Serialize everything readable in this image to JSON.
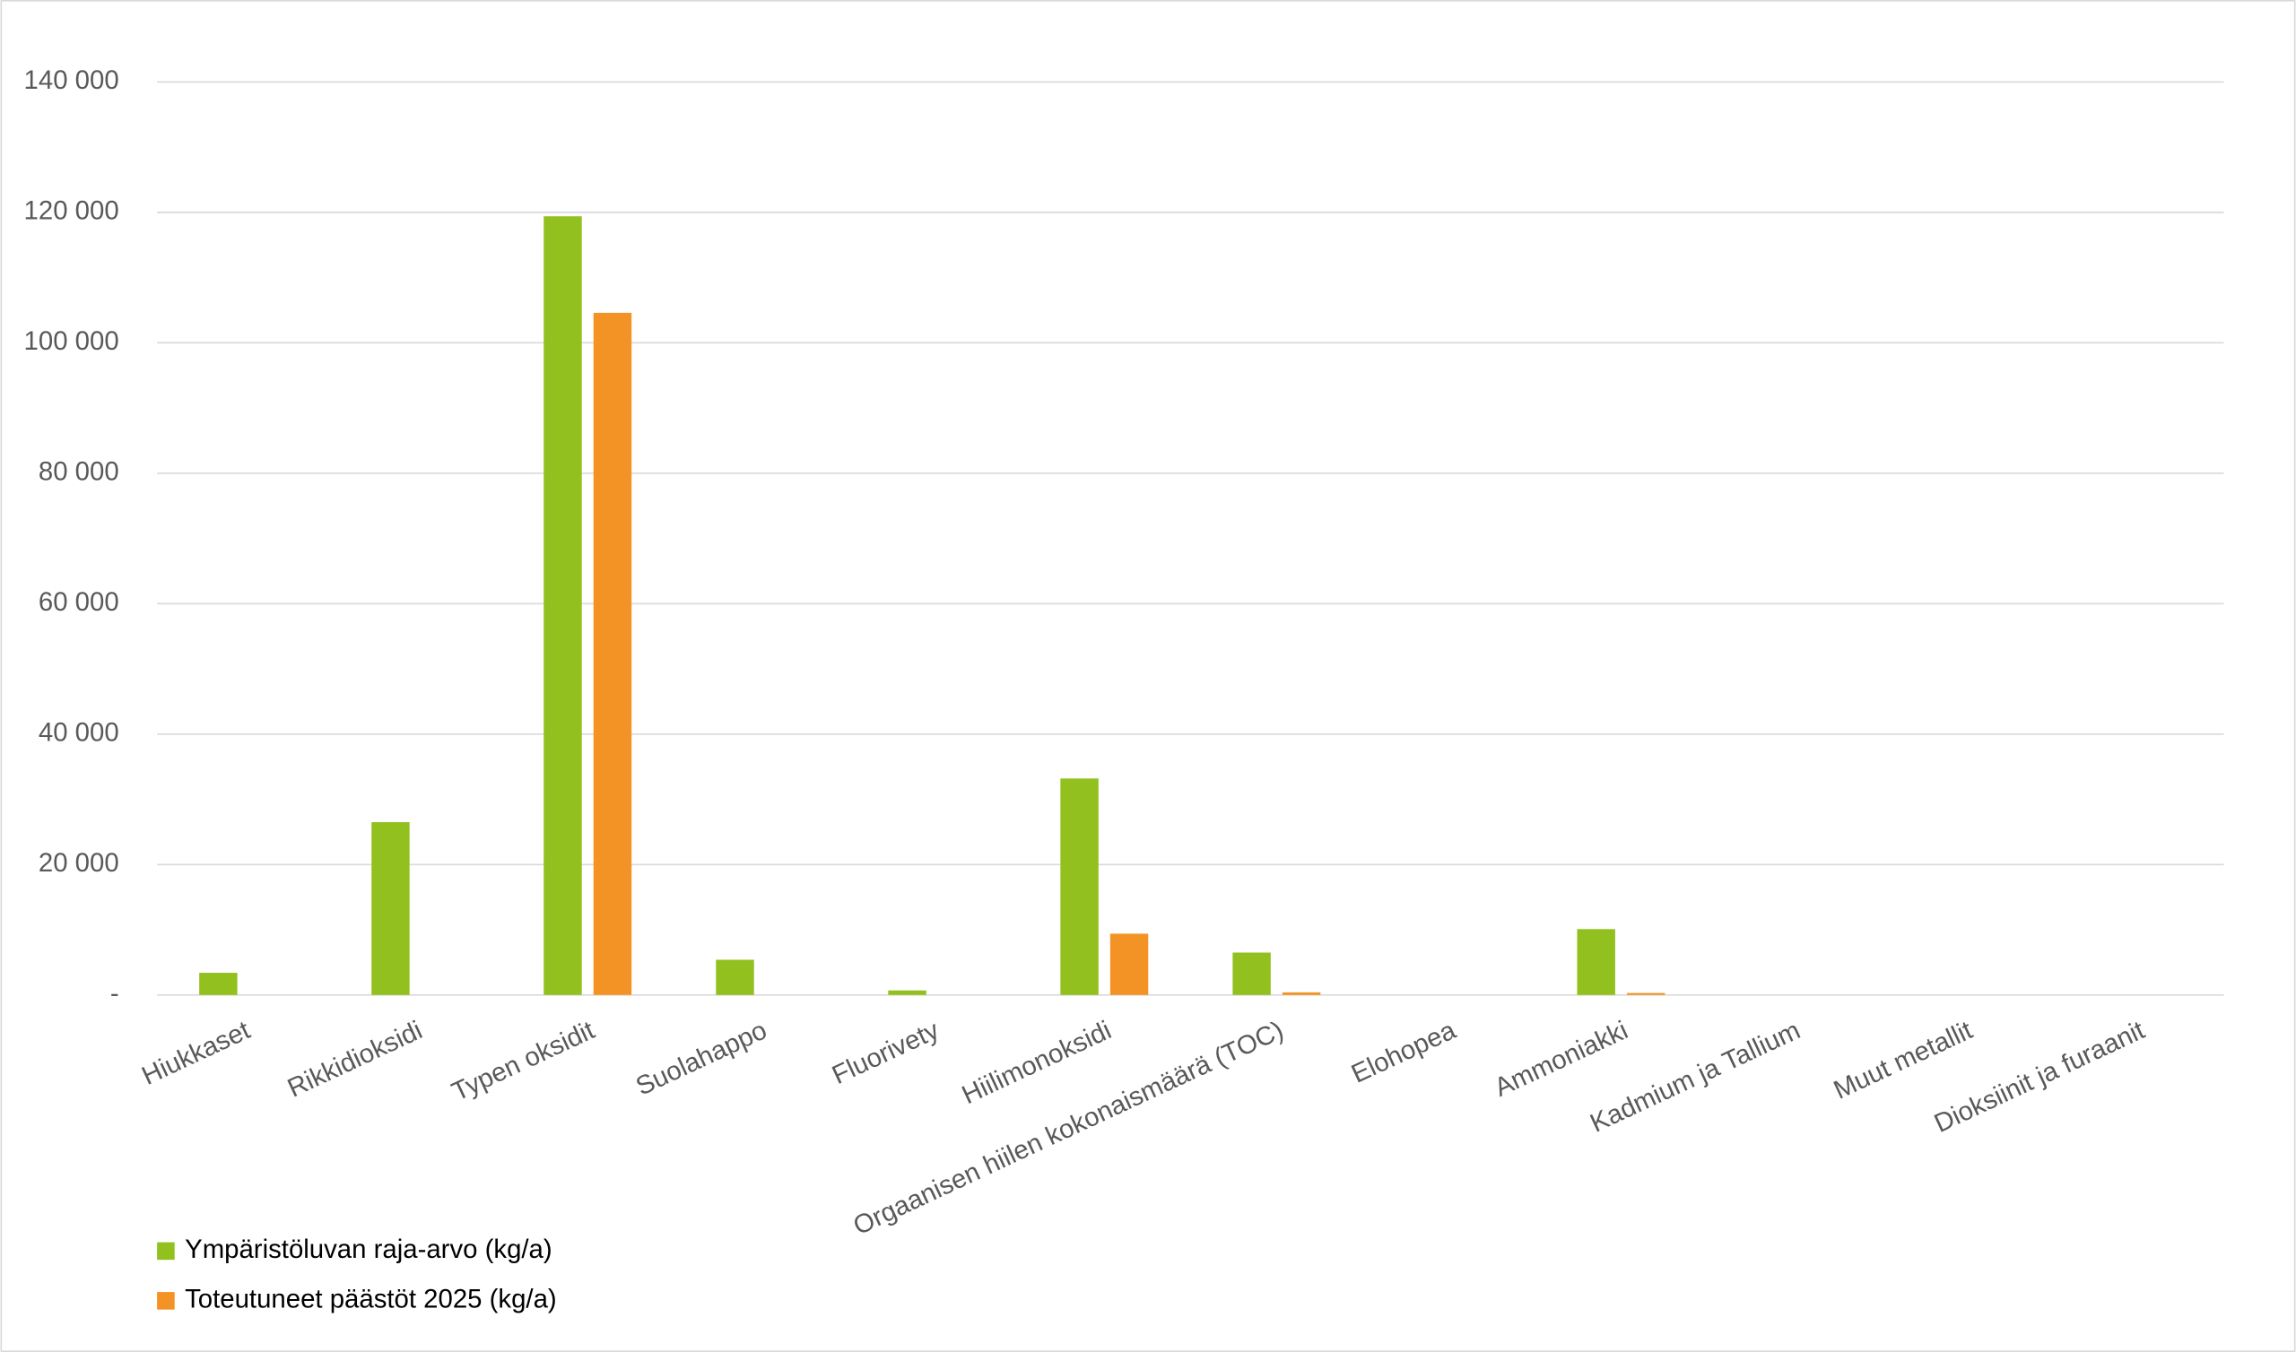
{
  "chart_data": {
    "type": "bar",
    "categories": [
      "Hiukkaset",
      "Rikkidioksidi",
      "Typen oksidit",
      "Suolahappo",
      "Fluorivety",
      "Hiilimonoksidi",
      "Orgaanisen hiilen kokonaismäärä (TOC)",
      "Elohopea",
      "Ammoniakki",
      "Kadmium ja Tallium",
      "Muut metallit",
      "Dioksiinit ja furaanit"
    ],
    "series": [
      {
        "name": "Ympäristöluvan raja-arvo (kg/a)",
        "color": "#92c01f",
        "values": [
          3400,
          26500,
          119400,
          5400,
          700,
          33200,
          6500,
          0,
          10100,
          0,
          0,
          0
        ]
      },
      {
        "name": "Toteutuneet päästöt 2025 (kg/a)",
        "color": "#f39325",
        "values": [
          0,
          0,
          104600,
          0,
          0,
          9400,
          400,
          0,
          300,
          0,
          0,
          0
        ]
      }
    ],
    "ylim": [
      0,
      140000
    ],
    "yticks": [
      {
        "value": 0,
        "label": "-"
      },
      {
        "value": 20000,
        "label": "20 000"
      },
      {
        "value": 40000,
        "label": "40 000"
      },
      {
        "value": 60000,
        "label": "60 000"
      },
      {
        "value": 80000,
        "label": "80 000"
      },
      {
        "value": 100000,
        "label": "100 000"
      },
      {
        "value": 120000,
        "label": "120 000"
      },
      {
        "value": 140000,
        "label": "140 000"
      }
    ],
    "grid": true,
    "legend": "bottom-left"
  }
}
